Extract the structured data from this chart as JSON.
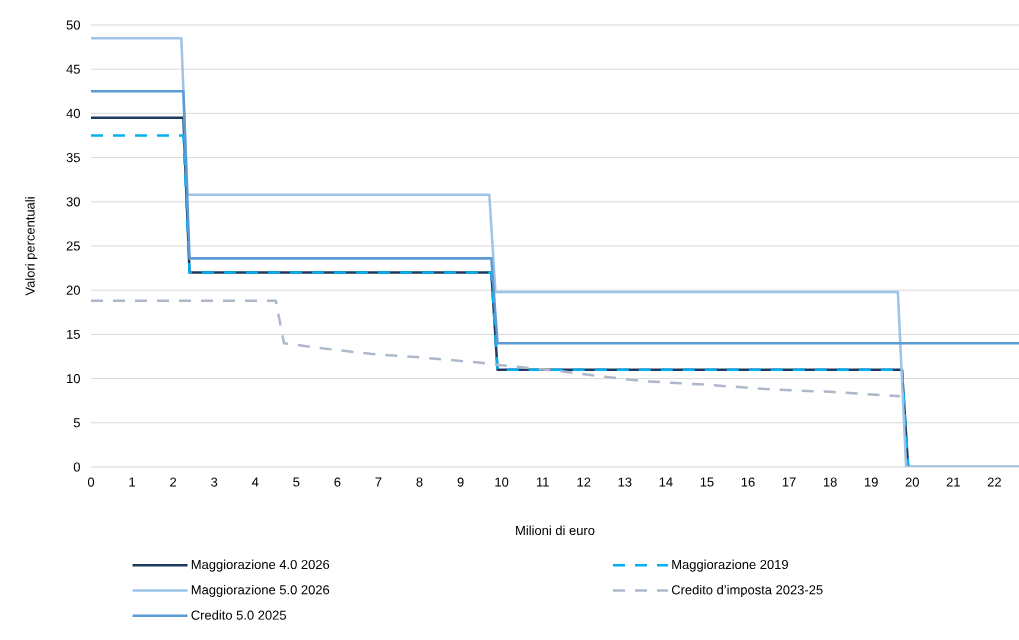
{
  "chart_data": {
    "type": "line",
    "xlabel": "Milioni di euro",
    "ylabel": "Valori percentuali",
    "xlim": [
      0,
      22.6
    ],
    "ylim": [
      0,
      50
    ],
    "xticks": [
      0,
      1,
      2,
      3,
      4,
      5,
      6,
      7,
      8,
      9,
      10,
      11,
      12,
      13,
      14,
      15,
      16,
      17,
      18,
      19,
      20,
      21,
      22
    ],
    "yticks": [
      0,
      5,
      10,
      15,
      20,
      25,
      30,
      35,
      40,
      45,
      50
    ],
    "grid": "y",
    "legend": "bottom",
    "marker": "none",
    "series": [
      {
        "name": "Maggiorazione 4.0  2026",
        "color": "#1f3a5f",
        "line_style": "solid",
        "x": [
          0,
          2.25,
          2.4,
          9.75,
          9.9,
          19.75,
          19.9,
          22.6
        ],
        "values": [
          39.5,
          39.5,
          22,
          22,
          11,
          11,
          0,
          0
        ]
      },
      {
        "name": "Maggiorazione 2019",
        "color": "#00b0f0",
        "line_style": "dashed",
        "x": [
          0,
          2.25,
          2.4,
          9.75,
          9.9,
          19.75,
          19.9
        ],
        "values": [
          37.5,
          37.5,
          22,
          22,
          11,
          11,
          0
        ]
      },
      {
        "name": "Maggiorazione 5.0 2026",
        "color": "#9dc3e6",
        "line_style": "solid",
        "x": [
          0,
          2.2,
          2.35,
          9.7,
          9.85,
          19.65,
          19.85,
          22.6
        ],
        "values": [
          48.5,
          48.5,
          30.8,
          30.8,
          19.8,
          19.8,
          0,
          0
        ]
      },
      {
        "name": "Credito d’imposta 2023-25",
        "color": "#adb9ca",
        "line_style": "dashed",
        "x": [
          0,
          4.5,
          4.7,
          5.5,
          6.8,
          8,
          9.5,
          10,
          11.5,
          12.5,
          13.5,
          15,
          16.5,
          18,
          19.7
        ],
        "values": [
          18.8,
          18.8,
          14,
          13.5,
          12.8,
          12.4,
          11.8,
          11.5,
          10.8,
          10.2,
          9.7,
          9.3,
          8.8,
          8.5,
          8
        ]
      },
      {
        "name": "Credito 5.0 2025",
        "color": "#5b9bd5",
        "line_style": "solid",
        "x": [
          0,
          2.25,
          2.4,
          9.75,
          9.9,
          22.6
        ],
        "values": [
          42.5,
          42.5,
          23.6,
          23.6,
          14,
          14
        ]
      }
    ]
  }
}
